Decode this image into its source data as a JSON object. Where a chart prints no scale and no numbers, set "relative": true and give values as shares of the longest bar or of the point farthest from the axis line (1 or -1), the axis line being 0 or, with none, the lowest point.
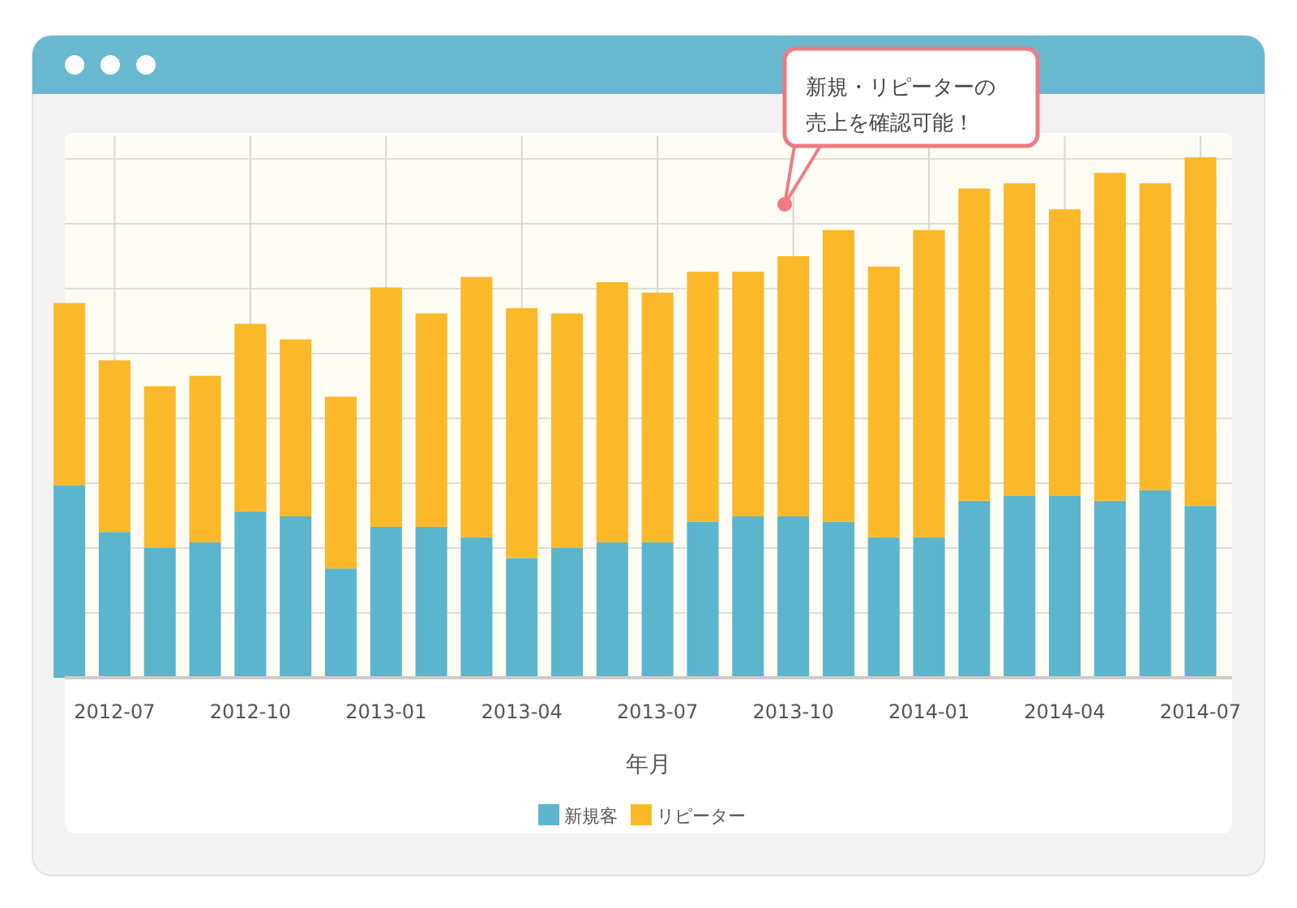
{
  "chart_data": {
    "type": "bar",
    "stacked": true,
    "relative": true,
    "grid": true,
    "legend": "bottom",
    "xlabel": "年月",
    "annotations": [
      "新規・リピーターの売上を確認可能！"
    ],
    "categories": [
      null,
      "2012-07",
      null,
      null,
      "2012-10",
      null,
      null,
      "2013-01",
      null,
      null,
      "2013-04",
      null,
      null,
      "2013-07",
      null,
      null,
      "2013-10",
      null,
      null,
      "2014-01",
      null,
      null,
      "2014-04",
      null,
      null,
      "2014-07"
    ],
    "series": [
      {
        "name": "新規客",
        "color": "#5bb5cc",
        "values": [
          0.37,
          0.28,
          0.25,
          0.26,
          0.32,
          0.31,
          0.21,
          0.29,
          0.29,
          0.27,
          0.23,
          0.25,
          0.26,
          0.26,
          0.3,
          0.31,
          0.31,
          0.3,
          0.27,
          0.27,
          0.34,
          0.35,
          0.35,
          0.34,
          0.36,
          0.33
        ]
      },
      {
        "name": "リピーター",
        "color": "#fbb829",
        "values": [
          0.35,
          0.33,
          0.31,
          0.32,
          0.36,
          0.34,
          0.33,
          0.46,
          0.41,
          0.5,
          0.48,
          0.45,
          0.5,
          0.48,
          0.48,
          0.47,
          0.5,
          0.56,
          0.52,
          0.59,
          0.6,
          0.6,
          0.55,
          0.63,
          0.59,
          0.67
        ]
      }
    ]
  }
}
